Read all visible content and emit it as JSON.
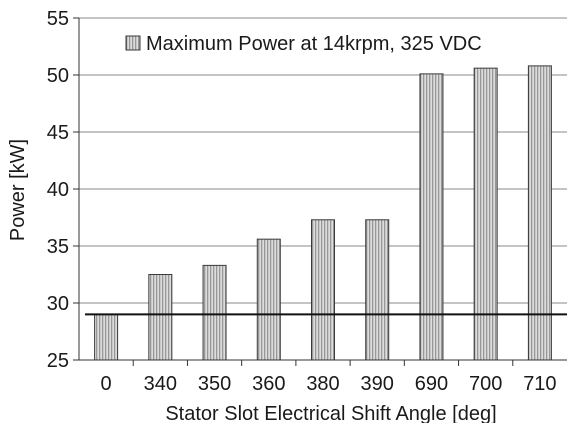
{
  "chart_data": {
    "type": "bar",
    "categories": [
      "0",
      "340",
      "350",
      "360",
      "380",
      "390",
      "690",
      "700",
      "710"
    ],
    "series": [
      {
        "name": "Maximum Power at 14krpm, 325 VDC",
        "values": [
          29.0,
          32.5,
          33.3,
          35.6,
          37.3,
          37.3,
          50.1,
          50.6,
          50.8
        ]
      }
    ],
    "baseline": 29.0,
    "title": "",
    "xlabel": "Stator Slot Electrical Shift Angle [deg]",
    "ylabel": "Power [kW]",
    "ylim": [
      25,
      55
    ],
    "yticks": [
      "25",
      "30",
      "35",
      "40",
      "45",
      "50",
      "55"
    ],
    "grid": true,
    "legend_placement": "top",
    "colors": {
      "bar_fill": "#d3d3d3",
      "bar_stroke": "#3a3a3a",
      "grid": "#8a8a8a",
      "baseline": "#111111"
    }
  }
}
